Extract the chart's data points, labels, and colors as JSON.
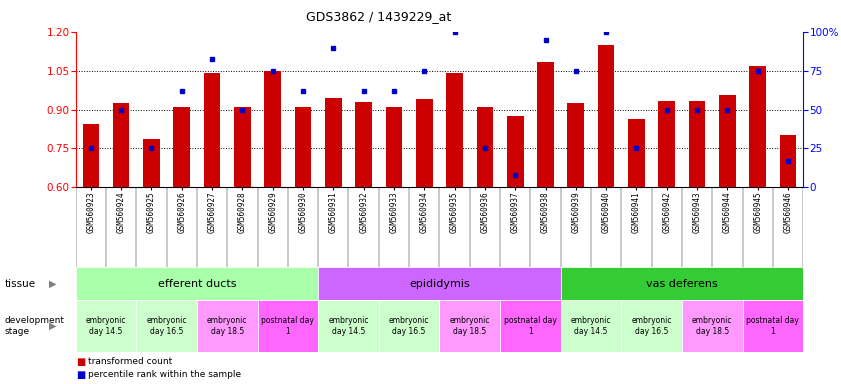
{
  "title": "GDS3862 / 1439229_at",
  "samples": [
    "GSM560923",
    "GSM560924",
    "GSM560925",
    "GSM560926",
    "GSM560927",
    "GSM560928",
    "GSM560929",
    "GSM560930",
    "GSM560931",
    "GSM560932",
    "GSM560933",
    "GSM560934",
    "GSM560935",
    "GSM560936",
    "GSM560937",
    "GSM560938",
    "GSM560939",
    "GSM560940",
    "GSM560941",
    "GSM560942",
    "GSM560943",
    "GSM560944",
    "GSM560945",
    "GSM560946"
  ],
  "transformed_count": [
    0.845,
    0.925,
    0.785,
    0.91,
    1.04,
    0.91,
    1.05,
    0.91,
    0.945,
    0.93,
    0.91,
    0.94,
    1.04,
    0.91,
    0.875,
    1.085,
    0.925,
    1.15,
    0.865,
    0.935,
    0.935,
    0.955,
    1.07,
    0.8
  ],
  "percentile_rank": [
    25,
    50,
    25,
    62,
    83,
    50,
    75,
    62,
    90,
    62,
    62,
    75,
    100,
    25,
    8,
    95,
    75,
    100,
    25,
    50,
    50,
    50,
    75,
    17
  ],
  "ylim_left": [
    0.6,
    1.2
  ],
  "ylim_right": [
    0,
    100
  ],
  "yticks_left": [
    0.6,
    0.75,
    0.9,
    1.05,
    1.2
  ],
  "yticks_right": [
    0,
    25,
    50,
    75,
    100
  ],
  "hlines": [
    0.75,
    0.9,
    1.05
  ],
  "bar_color": "#cc0000",
  "dot_color": "#0000cc",
  "tissues": [
    {
      "label": "efferent ducts",
      "start": 0,
      "end": 7,
      "color": "#aaffaa"
    },
    {
      "label": "epididymis",
      "start": 8,
      "end": 15,
      "color": "#cc66ff"
    },
    {
      "label": "vas deferens",
      "start": 16,
      "end": 23,
      "color": "#33cc33"
    }
  ],
  "dev_stages": [
    {
      "label": "embryonic\nday 14.5",
      "indices": [
        0,
        1
      ],
      "color": "#ccffcc"
    },
    {
      "label": "embryonic\nday 16.5",
      "indices": [
        2,
        3
      ],
      "color": "#ccffcc"
    },
    {
      "label": "embryonic\nday 18.5",
      "indices": [
        4,
        5
      ],
      "color": "#ff99ff"
    },
    {
      "label": "postnatal day\n1",
      "indices": [
        6,
        7
      ],
      "color": "#ff66ff"
    },
    {
      "label": "embryonic\nday 14.5",
      "indices": [
        8,
        9
      ],
      "color": "#ccffcc"
    },
    {
      "label": "embryonic\nday 16.5",
      "indices": [
        10,
        11
      ],
      "color": "#ccffcc"
    },
    {
      "label": "embryonic\nday 18.5",
      "indices": [
        12,
        13
      ],
      "color": "#ff99ff"
    },
    {
      "label": "postnatal day\n1",
      "indices": [
        14,
        15
      ],
      "color": "#ff66ff"
    },
    {
      "label": "embryonic\nday 14.5",
      "indices": [
        16,
        17
      ],
      "color": "#ccffcc"
    },
    {
      "label": "embryonic\nday 16.5",
      "indices": [
        18,
        19
      ],
      "color": "#ccffcc"
    },
    {
      "label": "embryonic\nday 18.5",
      "indices": [
        20,
        21
      ],
      "color": "#ff99ff"
    },
    {
      "label": "postnatal day\n1",
      "indices": [
        22,
        23
      ],
      "color": "#ff66ff"
    }
  ]
}
